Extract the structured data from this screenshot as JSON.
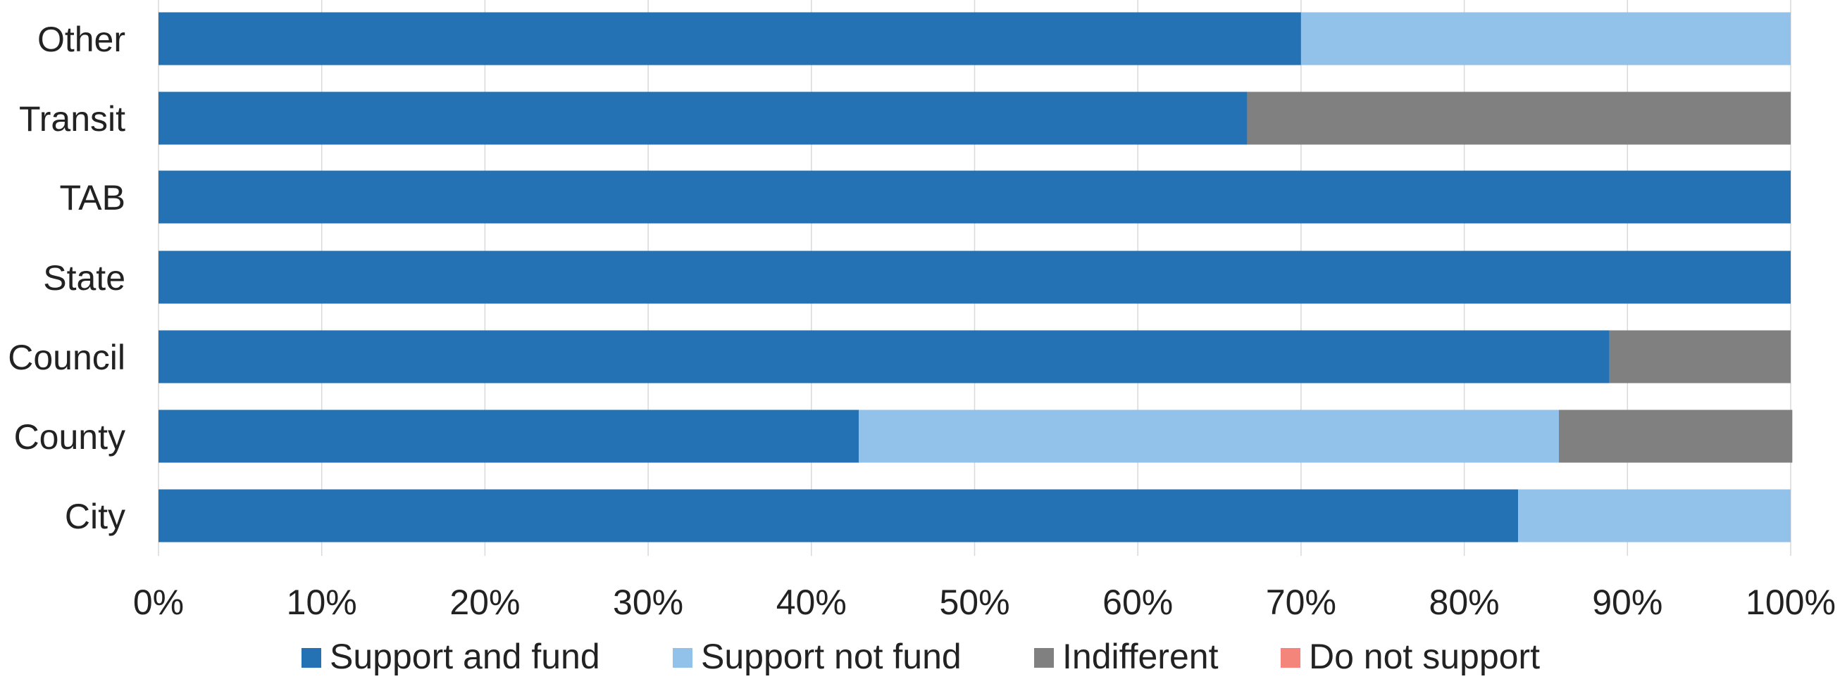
{
  "chart_data": {
    "type": "bar",
    "orientation": "horizontal",
    "stacked": true,
    "categories": [
      "City",
      "County",
      "Council",
      "State",
      "TAB",
      "Transit",
      "Other"
    ],
    "series": [
      {
        "name": "Support and fund",
        "color": "#2471B3",
        "values": [
          83.3,
          42.9,
          88.9,
          100,
          100,
          66.7,
          70.0
        ]
      },
      {
        "name": "Support not fund",
        "color": "#92C1E9",
        "values": [
          16.7,
          42.9,
          0,
          0,
          0,
          0,
          30.0
        ]
      },
      {
        "name": "Indifferent",
        "color": "#808080",
        "values": [
          0,
          14.3,
          11.1,
          0,
          0,
          33.3,
          0
        ]
      },
      {
        "name": "Do not support",
        "color": "#F4857B",
        "values": [
          0,
          0,
          0,
          0,
          0,
          0,
          0
        ]
      }
    ],
    "xlim": [
      0,
      100
    ],
    "x_ticks": [
      0,
      10,
      20,
      30,
      40,
      50,
      60,
      70,
      80,
      90,
      100
    ],
    "x_tick_labels": [
      "0%",
      "10%",
      "20%",
      "30%",
      "40%",
      "50%",
      "60%",
      "70%",
      "80%",
      "90%",
      "100%"
    ],
    "grid": "vertical",
    "grid_color": "#D9D9D9",
    "legend_position": "bottom"
  }
}
